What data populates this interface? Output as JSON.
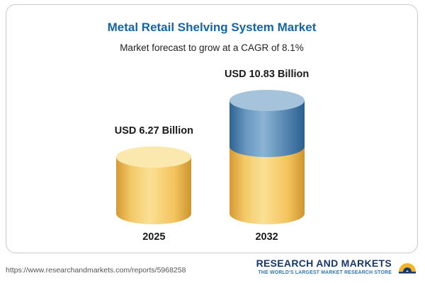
{
  "chart_data": {
    "type": "bar",
    "title": "Metal Retail Shelving System Market",
    "subtitle": "Market forecast to grow at a CAGR of 8.1%",
    "unit": "USD Billion",
    "categories": [
      "2025",
      "2032"
    ],
    "values": [
      6.27,
      10.83
    ],
    "value_labels": [
      "USD 6.27 Billion",
      "USD 10.83 Billion"
    ],
    "series": [
      {
        "name": "base (2025 level)",
        "values": [
          6.27,
          6.27
        ],
        "color": "#f2c45f"
      },
      {
        "name": "growth to 2032",
        "values": [
          0,
          4.56
        ],
        "color": "#4a7fae"
      }
    ],
    "cagr": "8.1%",
    "legend": "none",
    "grid": false,
    "colors": {
      "gold": "#f2c45f",
      "blue": "#4a7fae",
      "title": "#1465a5"
    }
  },
  "footer": {
    "url": "https://www.researchandmarkets.com/reports/5968258",
    "logo_name": "RESEARCH AND MARKETS",
    "logo_tagline": "THE WORLD'S LARGEST MARKET RESEARCH STORE"
  }
}
